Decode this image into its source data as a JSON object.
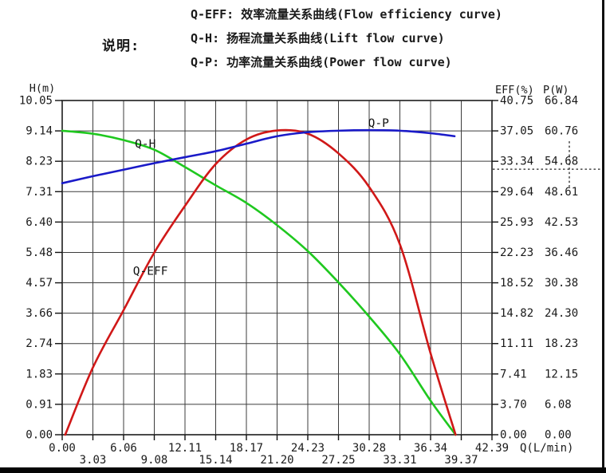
{
  "legend": {
    "heading": "说明:",
    "items": [
      "Q-EFF: 效率流量关系曲线(Flow efficiency curve)",
      "Q-H: 扬程流量关系曲线(Lift flow curve)",
      "Q-P: 功率流量关系曲线(Power flow curve)"
    ]
  },
  "axes": {
    "left": {
      "title": "H(m)",
      "ticks": [
        "10.05",
        "9.14",
        "8.23",
        "7.31",
        "6.40",
        "5.48",
        "4.57",
        "3.66",
        "2.74",
        "1.83",
        "0.91",
        "0.00"
      ]
    },
    "right_eff": {
      "title": "EFF(%)",
      "ticks": [
        "40.75",
        "37.05",
        "33.34",
        "29.64",
        "25.93",
        "22.23",
        "18.52",
        "14.82",
        "11.11",
        "7.41",
        "3.70",
        "0.00"
      ]
    },
    "right_p": {
      "title": "P(W)",
      "ticks": [
        "66.84",
        "60.76",
        "54.68",
        "48.61",
        "42.53",
        "36.46",
        "30.38",
        "24.30",
        "18.23",
        "12.15",
        "6.08",
        "0.00"
      ]
    },
    "x": {
      "title": "Q(L/min)",
      "ticks": [
        "0.00",
        "3.03",
        "6.06",
        "9.08",
        "12.11",
        "15.14",
        "18.17",
        "21.20",
        "24.23",
        "27.25",
        "30.28",
        "33.31",
        "36.34",
        "39.37",
        "42.39"
      ]
    }
  },
  "colors": {
    "grid": "#3c3c3c",
    "plot_border": "#2a2a2a",
    "tick": "#111111",
    "text": "#1a1a1a",
    "h_curve": "#1fc81f",
    "eff_curve": "#d01818",
    "p_curve": "#1a1ac8",
    "marker_dash": "#222222"
  },
  "chart_data": {
    "type": "line",
    "title": "Pump performance curves",
    "xlabel": "Q(L/min)",
    "q_max": 42.39,
    "h_max": 10.05,
    "eff_max": 40.75,
    "p_max": 66.84,
    "grid": "on",
    "series": [
      {
        "name": "Q-H",
        "axis": "H",
        "color_key": "h_curve",
        "points": [
          [
            0,
            9.14
          ],
          [
            3.03,
            9.05
          ],
          [
            6.06,
            8.86
          ],
          [
            9.08,
            8.57
          ],
          [
            12.11,
            8.05
          ],
          [
            15.14,
            7.5
          ],
          [
            18.17,
            6.97
          ],
          [
            21.2,
            6.3
          ],
          [
            24.23,
            5.52
          ],
          [
            27.25,
            4.58
          ],
          [
            30.28,
            3.55
          ],
          [
            33.31,
            2.42
          ],
          [
            36.34,
            1.02
          ],
          [
            38.8,
            0.0
          ]
        ]
      },
      {
        "name": "Q-EFF",
        "axis": "EFF",
        "color_key": "eff_curve",
        "points": [
          [
            0.3,
            0.0
          ],
          [
            3.03,
            8.2
          ],
          [
            6.06,
            15.2
          ],
          [
            9.08,
            22.2
          ],
          [
            12.11,
            27.9
          ],
          [
            15.14,
            33.0
          ],
          [
            18.17,
            36.0
          ],
          [
            21.2,
            37.1
          ],
          [
            24.23,
            36.7
          ],
          [
            27.25,
            34.3
          ],
          [
            30.28,
            30.2
          ],
          [
            33.31,
            23.2
          ],
          [
            36.34,
            9.9
          ],
          [
            38.8,
            0.0
          ]
        ]
      },
      {
        "name": "Q-P",
        "axis": "P",
        "color_key": "p_curve",
        "points": [
          [
            0,
            50.3
          ],
          [
            3.03,
            51.7
          ],
          [
            6.06,
            53.0
          ],
          [
            9.08,
            54.3
          ],
          [
            12.11,
            55.5
          ],
          [
            15.14,
            56.7
          ],
          [
            18.17,
            58.2
          ],
          [
            21.2,
            59.7
          ],
          [
            24.23,
            60.5
          ],
          [
            27.25,
            60.8
          ],
          [
            30.28,
            60.9
          ],
          [
            33.31,
            60.8
          ],
          [
            36.34,
            60.3
          ],
          [
            38.7,
            59.7
          ]
        ]
      }
    ],
    "curve_labels": [
      {
        "text": "Q-H",
        "axis": "H",
        "x": 8.2,
        "y": 8.73
      },
      {
        "text": "Q-EFF",
        "axis": "EFF",
        "x": 8.7,
        "y": 19.9
      },
      {
        "text": "Q-P",
        "axis": "P",
        "x": 31.2,
        "y": 62.2
      }
    ],
    "marker": {
      "axis": "P",
      "value": 53.1
    }
  }
}
